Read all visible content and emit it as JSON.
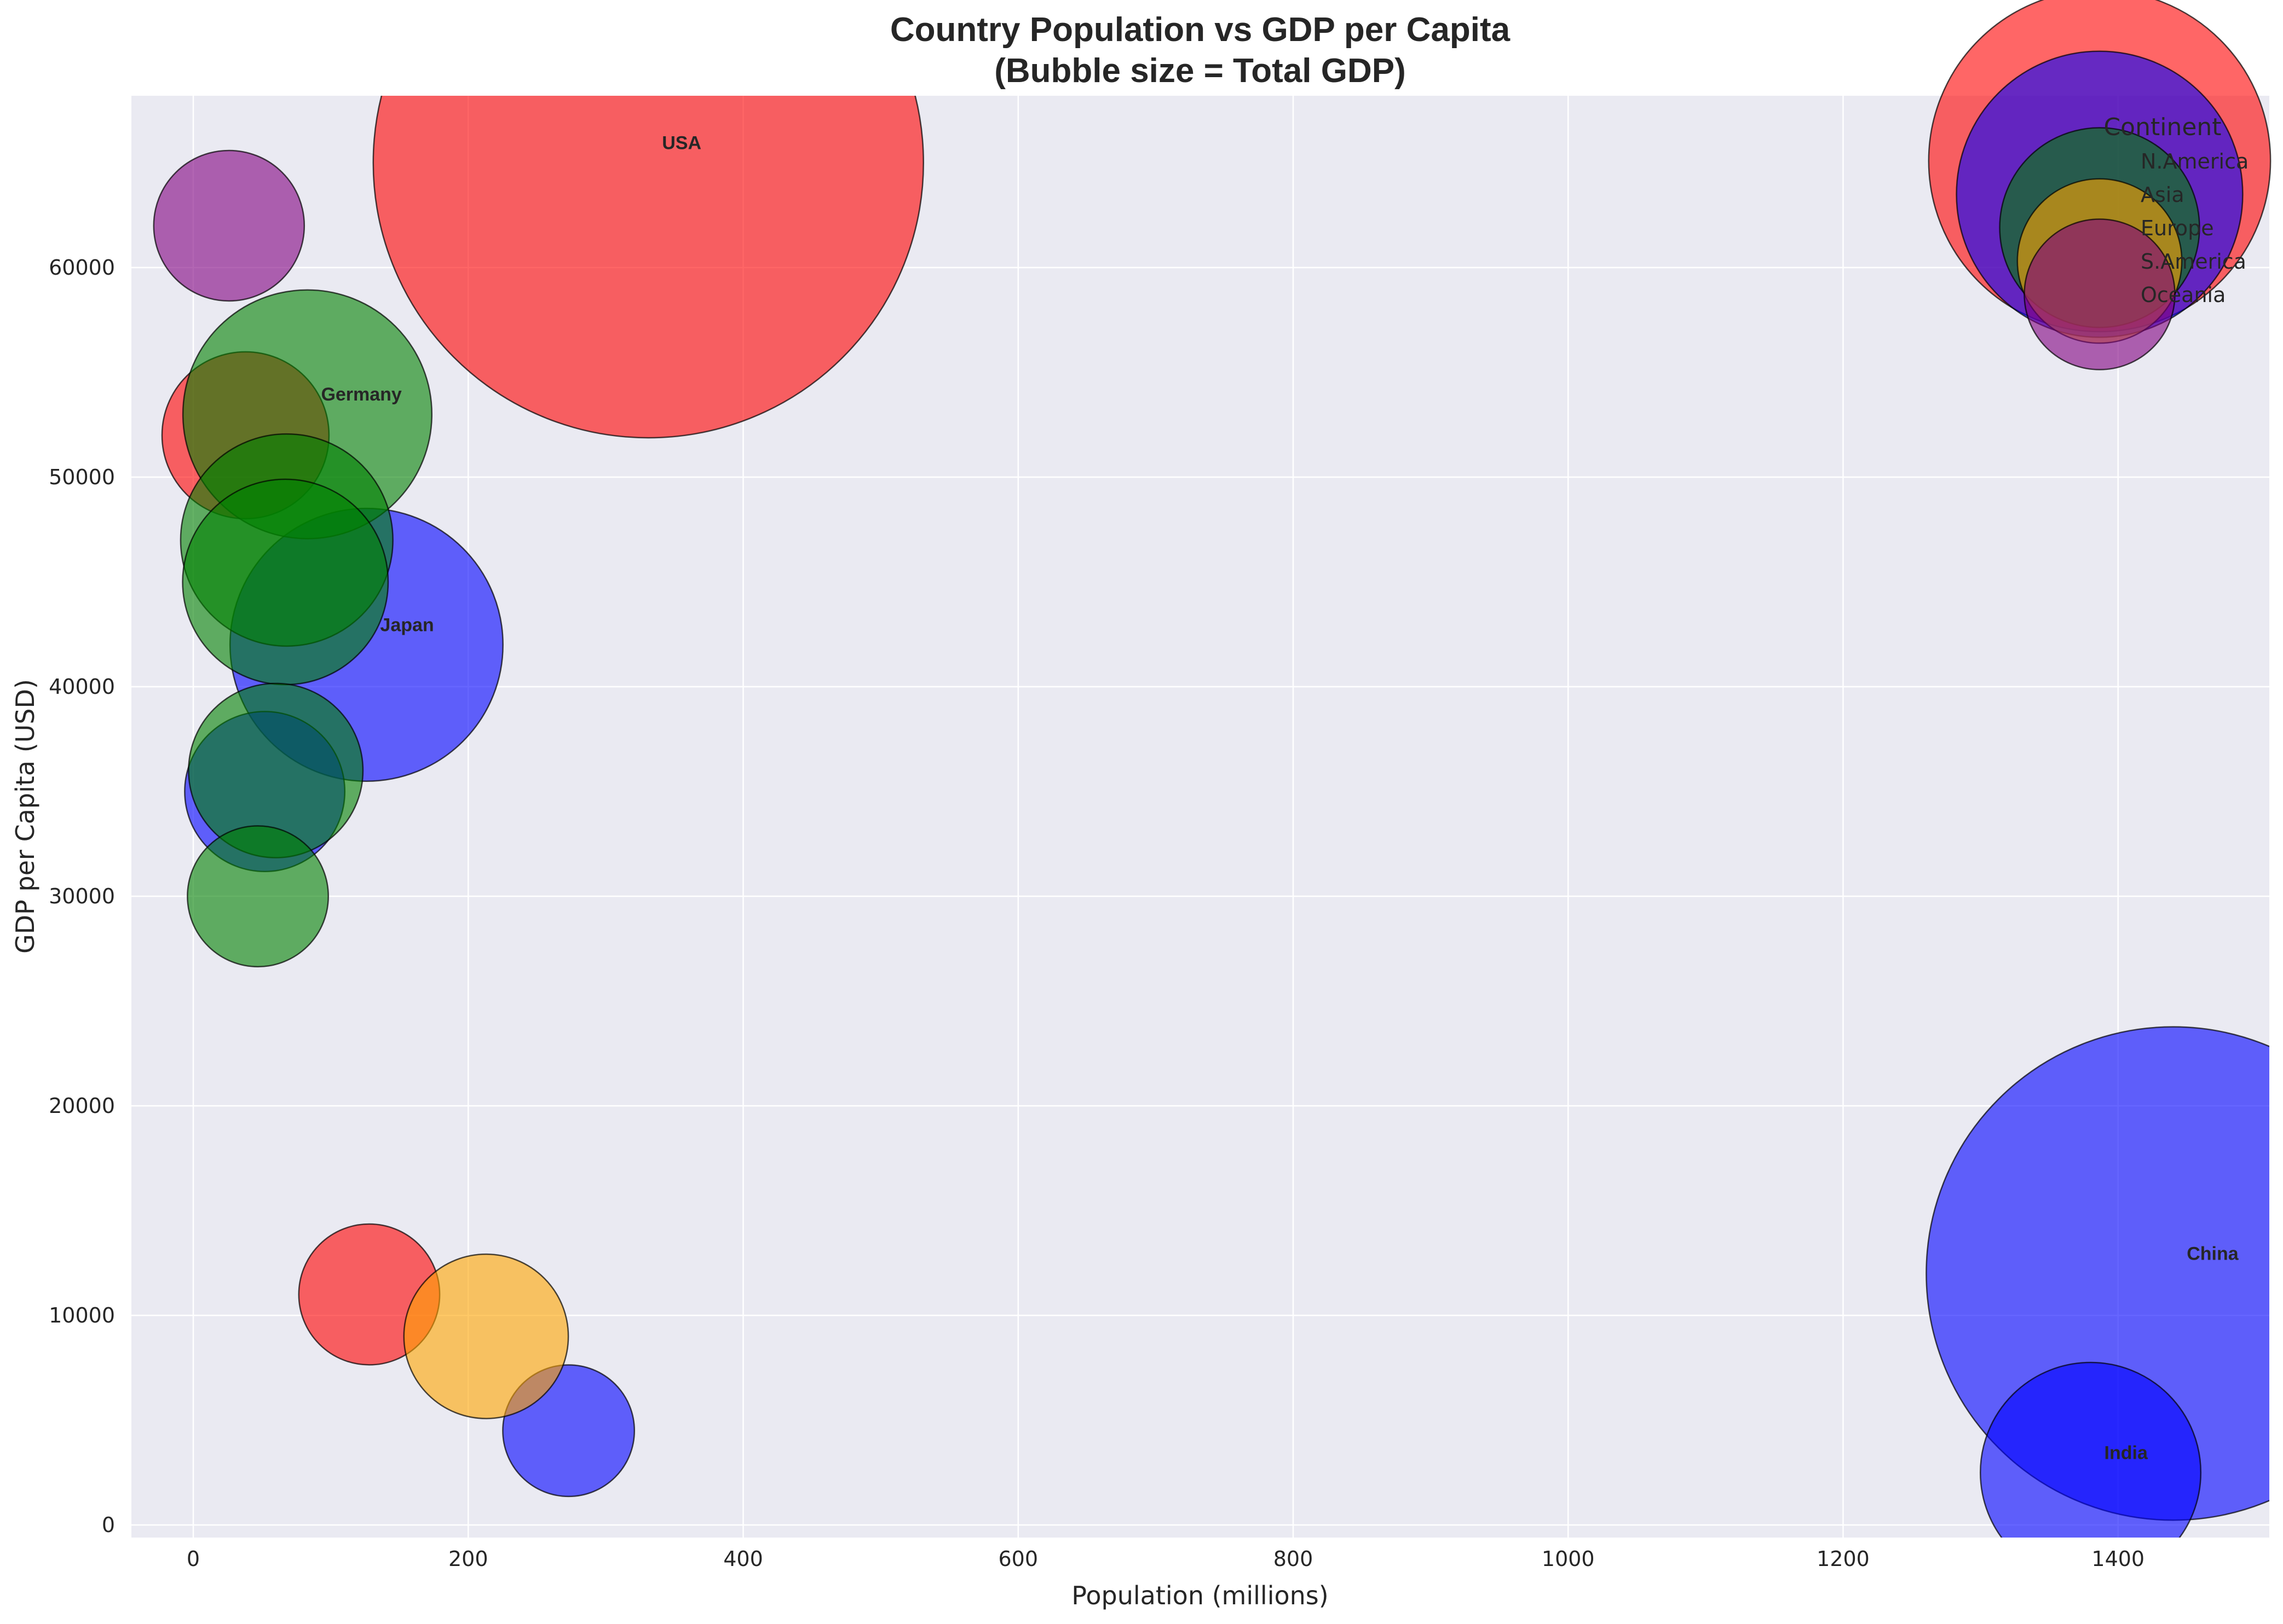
{
  "chart_data": {
    "type": "scatter",
    "title_line1": "Country Population vs GDP per Capita",
    "title_line2": "(Bubble size = Total GDP)",
    "xlabel": "Population (millions)",
    "ylabel": "GDP per Capita (USD)",
    "xlim": [
      -45,
      1510
    ],
    "ylim": [
      -600,
      68200
    ],
    "xticks": [
      0,
      200,
      400,
      600,
      800,
      1000,
      1200,
      1400
    ],
    "yticks": [
      0,
      10000,
      20000,
      30000,
      40000,
      50000,
      60000
    ],
    "grid": true,
    "legend": {
      "title": "Continent",
      "placement": "top-right",
      "entries": [
        {
          "name": "N.America",
          "color": "#ff0000"
        },
        {
          "name": "Asia",
          "color": "#0000ff"
        },
        {
          "name": "Europe",
          "color": "#008000"
        },
        {
          "name": "S.America",
          "color": "#ffa500"
        },
        {
          "name": "Oceania",
          "color": "#800080"
        }
      ]
    },
    "points": [
      {
        "x": 331,
        "y": 65000,
        "gdp": 21.5,
        "continent": "N.America",
        "label": "USA"
      },
      {
        "x": 38,
        "y": 52000,
        "gdp": 1.98,
        "continent": "N.America",
        "label": ""
      },
      {
        "x": 128,
        "y": 11000,
        "gdp": 1.41,
        "continent": "N.America",
        "label": ""
      },
      {
        "x": 1440,
        "y": 12000,
        "gdp": 17.3,
        "continent": "Asia",
        "label": "China"
      },
      {
        "x": 1380,
        "y": 2500,
        "gdp": 3.45,
        "continent": "Asia",
        "label": "India"
      },
      {
        "x": 126,
        "y": 42000,
        "gdp": 5.29,
        "continent": "Asia",
        "label": "Japan"
      },
      {
        "x": 52,
        "y": 35000,
        "gdp": 1.82,
        "continent": "Asia",
        "label": ""
      },
      {
        "x": 273,
        "y": 4500,
        "gdp": 1.23,
        "continent": "Asia",
        "label": ""
      },
      {
        "x": 83,
        "y": 53000,
        "gdp": 4.4,
        "continent": "Europe",
        "label": "Germany"
      },
      {
        "x": 68,
        "y": 47000,
        "gdp": 3.2,
        "continent": "Europe",
        "label": ""
      },
      {
        "x": 67,
        "y": 45000,
        "gdp": 3.0,
        "continent": "Europe",
        "label": ""
      },
      {
        "x": 60,
        "y": 36000,
        "gdp": 2.16,
        "continent": "Europe",
        "label": ""
      },
      {
        "x": 47,
        "y": 30000,
        "gdp": 1.41,
        "continent": "Europe",
        "label": ""
      },
      {
        "x": 213,
        "y": 9000,
        "gdp": 1.92,
        "continent": "S.America",
        "label": ""
      },
      {
        "x": 26,
        "y": 62000,
        "gdp": 1.61,
        "continent": "Oceania",
        "label": ""
      }
    ]
  }
}
